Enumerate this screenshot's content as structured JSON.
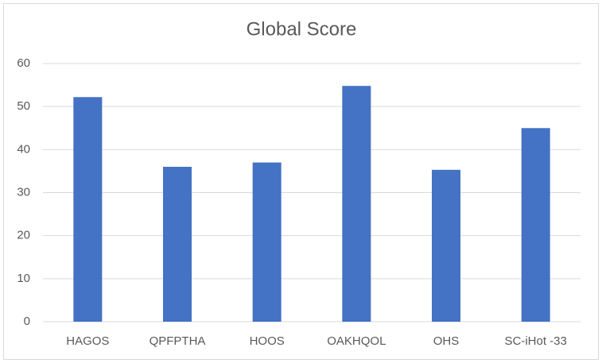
{
  "chart_data": {
    "type": "bar",
    "title": "Global Score",
    "categories": [
      "HAGOS",
      "QPFPTHA",
      "HOOS",
      "OAKHQOL",
      "OHS",
      "SC-iHot -33"
    ],
    "values": [
      52.2,
      36.0,
      37.0,
      54.8,
      35.3,
      45.0
    ],
    "color": "#4472c4",
    "ylim": [
      0,
      60
    ],
    "yticks": [
      0,
      10,
      20,
      30,
      40,
      50,
      60
    ],
    "grid": true
  }
}
